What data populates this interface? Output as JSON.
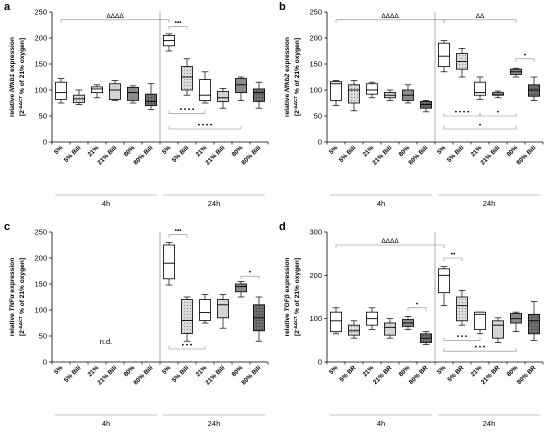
{
  "chart_data": [
    {
      "type": "box",
      "panel_label": "a",
      "ylabel_line1_pre": "relative ",
      "ylabel_gene": "Nfkb1",
      "ylabel_line1_post": " expression",
      "ylabel_line2_pre": "[2",
      "ylabel_line2_sup": "-ΔΔCT",
      "ylabel_line2_post": " % of 21% oxygen]",
      "ylim": [
        0,
        250
      ],
      "yticks": [
        "0",
        "50",
        "100",
        "150",
        "200",
        "250"
      ],
      "categories": [
        "5%",
        "5% Bili",
        "21%",
        "21% Bili",
        "80%",
        "80% Bili",
        "5%",
        "5% Bili",
        "21%",
        "21% Bili",
        "80%",
        "80% Bili"
      ],
      "groups": [
        {
          "label": "4h",
          "from": 0,
          "to": 5
        },
        {
          "label": "24h",
          "from": 6,
          "to": 11
        }
      ],
      "boxes": [
        {
          "min": 75,
          "q1": 82,
          "median": 95,
          "q3": 115,
          "max": 122
        },
        {
          "min": 72,
          "q1": 76,
          "median": 83,
          "q3": 90,
          "max": 100
        },
        {
          "min": 85,
          "q1": 95,
          "median": 102,
          "q3": 106,
          "max": 110
        },
        {
          "min": 80,
          "q1": 82,
          "median": 100,
          "q3": 112,
          "max": 118
        },
        {
          "min": 75,
          "q1": 80,
          "median": 95,
          "q3": 105,
          "max": 108
        },
        {
          "min": 62,
          "q1": 70,
          "median": 78,
          "q3": 92,
          "max": 112
        },
        {
          "min": 175,
          "q1": 185,
          "median": 195,
          "q3": 205,
          "max": 208
        },
        {
          "min": 90,
          "q1": 100,
          "median": 125,
          "q3": 145,
          "max": 160
        },
        {
          "min": 75,
          "q1": 80,
          "median": 90,
          "q3": 120,
          "max": 135
        },
        {
          "min": 65,
          "q1": 78,
          "median": 85,
          "q3": 97,
          "max": 103
        },
        {
          "min": 80,
          "q1": 95,
          "median": 110,
          "q3": 122,
          "max": 125
        },
        {
          "min": 65,
          "q1": 78,
          "median": 95,
          "q3": 102,
          "max": 115
        }
      ],
      "annotations": [
        {
          "text": "ΔΔΔΔ",
          "from": 0,
          "to": 6,
          "y": 235,
          "type": "top"
        },
        {
          "text": "•••",
          "from": 6,
          "to": 7,
          "y": 222,
          "type": "top"
        },
        {
          "text": "• • • •",
          "from": 6,
          "to": 8,
          "y": 55,
          "type": "bottom"
        },
        {
          "text": "• • • •",
          "from": 6,
          "to": 10,
          "y": 25,
          "type": "bottom"
        }
      ]
    },
    {
      "type": "box",
      "panel_label": "b",
      "ylabel_line1_pre": "relative ",
      "ylabel_gene": "Nfkb2",
      "ylabel_line1_post": " expression",
      "ylabel_line2_pre": "[2",
      "ylabel_line2_sup": "-ΔΔCT",
      "ylabel_line2_post": " % of 21% oxygen]",
      "ylim": [
        0,
        250
      ],
      "yticks": [
        "0",
        "50",
        "100",
        "150",
        "200",
        "250"
      ],
      "categories": [
        "5%",
        "5% Bili",
        "21%",
        "21% Bili",
        "80%",
        "80% Bili",
        "5%",
        "5% Bili",
        "21%",
        "21% Bili",
        "80%",
        "80% Bili"
      ],
      "groups": [
        {
          "label": "4h",
          "from": 0,
          "to": 5
        },
        {
          "label": "24h",
          "from": 6,
          "to": 11
        }
      ],
      "boxes": [
        {
          "min": 70,
          "q1": 80,
          "median": 112,
          "q3": 116,
          "max": 118
        },
        {
          "min": 60,
          "q1": 75,
          "median": 100,
          "q3": 110,
          "max": 118
        },
        {
          "min": 85,
          "q1": 92,
          "median": 100,
          "q3": 112,
          "max": 115
        },
        {
          "min": 80,
          "q1": 85,
          "median": 90,
          "q3": 95,
          "max": 100
        },
        {
          "min": 75,
          "q1": 80,
          "median": 90,
          "q3": 100,
          "max": 110
        },
        {
          "min": 58,
          "q1": 65,
          "median": 72,
          "q3": 78,
          "max": 80
        },
        {
          "min": 135,
          "q1": 145,
          "median": 165,
          "q3": 190,
          "max": 195
        },
        {
          "min": 125,
          "q1": 140,
          "median": 155,
          "q3": 170,
          "max": 180
        },
        {
          "min": 82,
          "q1": 90,
          "median": 95,
          "q3": 115,
          "max": 125
        },
        {
          "min": 85,
          "q1": 90,
          "median": 92,
          "q3": 95,
          "max": 98
        },
        {
          "min": 125,
          "q1": 130,
          "median": 135,
          "q3": 140,
          "max": 142
        },
        {
          "min": 80,
          "q1": 88,
          "median": 100,
          "q3": 110,
          "max": 125
        }
      ],
      "annotations": [
        {
          "text": "ΔΔΔΔ",
          "from": 0,
          "to": 6,
          "y": 235,
          "type": "top"
        },
        {
          "text": "ΔΔ",
          "from": 6,
          "to": 10,
          "y": 235,
          "type": "top"
        },
        {
          "text": "•",
          "from": 10,
          "to": 11,
          "y": 160,
          "type": "top"
        },
        {
          "text": "• • • •",
          "from": 6,
          "to": 8,
          "y": 50,
          "type": "bottom"
        },
        {
          "text": "•",
          "from": 8,
          "to": 10,
          "y": 50,
          "type": "bottom"
        },
        {
          "text": "•",
          "from": 6,
          "to": 10,
          "y": 25,
          "type": "bottom"
        }
      ]
    },
    {
      "type": "box",
      "panel_label": "c",
      "ylabel_line1_pre": "relative ",
      "ylabel_gene": "TNFα",
      "ylabel_line1_post": " expression",
      "ylabel_line2_pre": "[2",
      "ylabel_line2_sup": "-ΔΔCT",
      "ylabel_line2_post": " % of 21% oxygen]",
      "ylim": [
        0,
        250
      ],
      "yticks": [
        "0",
        "50",
        "100",
        "150",
        "200",
        "250"
      ],
      "categories": [
        "5%",
        "5% Bili",
        "21%",
        "21% Bili",
        "80%",
        "80% Bili",
        "5%",
        "5% Bili",
        "21%",
        "21% Bili",
        "80%",
        "80% Bili"
      ],
      "groups": [
        {
          "label": "4h",
          "from": 0,
          "to": 5
        },
        {
          "label": "24h",
          "from": 6,
          "to": 11
        }
      ],
      "nd_text": "n.d.",
      "boxes": [
        null,
        null,
        null,
        null,
        null,
        null,
        {
          "min": 148,
          "q1": 160,
          "median": 190,
          "q3": 225,
          "max": 230
        },
        {
          "min": 40,
          "q1": 55,
          "median": 80,
          "q3": 120,
          "max": 125
        },
        {
          "min": 75,
          "q1": 80,
          "median": 95,
          "q3": 120,
          "max": 130
        },
        {
          "min": 65,
          "q1": 85,
          "median": 110,
          "q3": 120,
          "max": 130
        },
        {
          "min": 125,
          "q1": 135,
          "median": 145,
          "q3": 150,
          "max": 155
        },
        {
          "min": 40,
          "q1": 60,
          "median": 85,
          "q3": 110,
          "max": 125
        }
      ],
      "annotations": [
        {
          "text": "•••",
          "from": 6,
          "to": 7,
          "y": 245,
          "type": "top"
        },
        {
          "text": "•",
          "from": 10,
          "to": 11,
          "y": 165,
          "type": "top"
        },
        {
          "text": "• • •",
          "from": 6,
          "to": 8,
          "y": 25,
          "type": "bottom"
        }
      ]
    },
    {
      "type": "box",
      "panel_label": "d",
      "ylabel_line1_pre": "relative ",
      "ylabel_gene": "TGFβ",
      "ylabel_line1_post": " expression",
      "ylabel_line2_pre": "[2",
      "ylabel_line2_sup": "-ΔΔCT",
      "ylabel_line2_post": " % of 21% oxygen]",
      "ylim": [
        0,
        300
      ],
      "yticks": [
        "0",
        "100",
        "200",
        "300"
      ],
      "categories": [
        "5%",
        "5% BR",
        "21%",
        "21% BR",
        "80%",
        "80% BR",
        "5%",
        "5% BR",
        "21%",
        "21% BR",
        "80%",
        "80% BR"
      ],
      "groups": [
        {
          "label": "4h",
          "from": 0,
          "to": 5
        },
        {
          "label": "24h",
          "from": 6,
          "to": 11
        }
      ],
      "boxes": [
        {
          "min": 65,
          "q1": 70,
          "median": 95,
          "q3": 115,
          "max": 125
        },
        {
          "min": 55,
          "q1": 62,
          "median": 72,
          "q3": 85,
          "max": 95
        },
        {
          "min": 75,
          "q1": 85,
          "median": 100,
          "q3": 115,
          "max": 125
        },
        {
          "min": 55,
          "q1": 62,
          "median": 80,
          "q3": 90,
          "max": 100
        },
        {
          "min": 75,
          "q1": 82,
          "median": 90,
          "q3": 98,
          "max": 105
        },
        {
          "min": 40,
          "q1": 45,
          "median": 55,
          "q3": 65,
          "max": 70
        },
        {
          "min": 130,
          "q1": 160,
          "median": 200,
          "q3": 215,
          "max": 220
        },
        {
          "min": 85,
          "q1": 95,
          "median": 130,
          "q3": 150,
          "max": 165
        },
        {
          "min": 65,
          "q1": 75,
          "median": 110,
          "q3": 115,
          "max": 115
        },
        {
          "min": 45,
          "q1": 55,
          "median": 85,
          "q3": 95,
          "max": 102
        },
        {
          "min": 70,
          "q1": 90,
          "median": 100,
          "q3": 112,
          "max": 115
        },
        {
          "min": 50,
          "q1": 65,
          "median": 95,
          "q3": 110,
          "max": 140
        }
      ],
      "annotations": [
        {
          "text": "ΔΔΔΔ",
          "from": 0,
          "to": 6,
          "y": 270,
          "type": "top"
        },
        {
          "text": "••",
          "from": 6,
          "to": 7,
          "y": 240,
          "type": "top"
        },
        {
          "text": "•",
          "from": 4,
          "to": 5,
          "y": 125,
          "type": "top"
        },
        {
          "text": "• • •",
          "from": 6,
          "to": 8,
          "y": 50,
          "type": "bottom"
        },
        {
          "text": "• • •",
          "from": 6,
          "to": 10,
          "y": 25,
          "type": "bottom"
        }
      ]
    }
  ],
  "styles": {
    "fills": [
      "#ffffff",
      "#d4d4d4",
      "#ffffff",
      "#d4d4d4",
      "#8a8a8a",
      "#707070",
      "#ffffff",
      "#d4d4d4",
      "#ffffff",
      "#d4d4d4",
      "#8a8a8a",
      "#707070"
    ],
    "stroke": "#000000"
  }
}
